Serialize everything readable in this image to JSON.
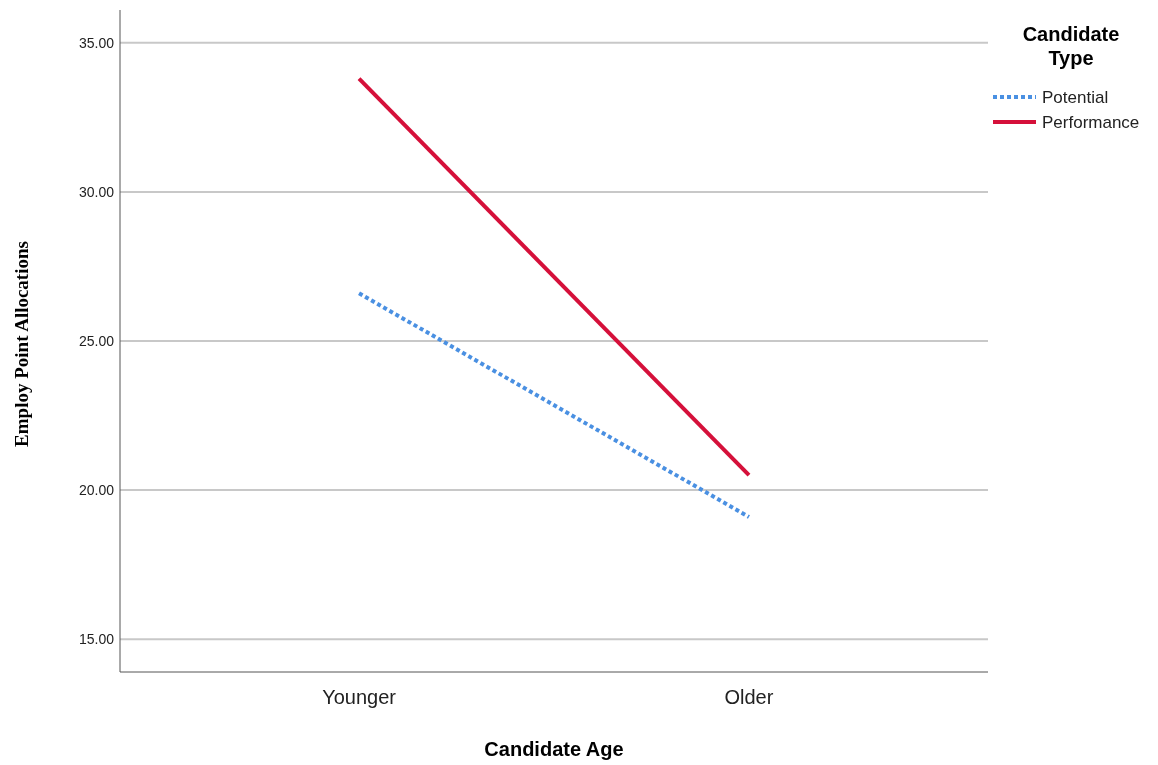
{
  "chart_data": {
    "type": "line",
    "xlabel": "Candidate Age",
    "ylabel": "Employ Point Allocations",
    "legend_title": "Candidate Type",
    "categories": [
      "Younger",
      "Older"
    ],
    "series": [
      {
        "name": "Potential",
        "color": "#4a90e2",
        "values": [
          26.6,
          19.1
        ],
        "line_style": "dotted"
      },
      {
        "name": "Performance",
        "color": "#d5103a",
        "values": [
          33.8,
          20.5
        ],
        "line_style": "solid"
      }
    ],
    "ylim": [
      13.9,
      36.1
    ],
    "yticks": [
      {
        "value": 15,
        "label": "15.00"
      },
      {
        "value": 20,
        "label": "20.00"
      },
      {
        "value": 25,
        "label": "25.00"
      },
      {
        "value": 30,
        "label": "30.00"
      },
      {
        "value": 35,
        "label": "35.00"
      }
    ],
    "grid": "y",
    "legend": "top right",
    "marker": "none"
  }
}
